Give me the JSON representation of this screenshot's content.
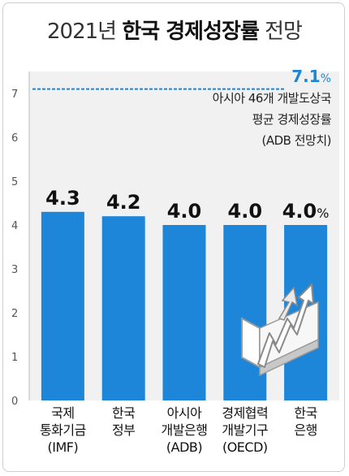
{
  "title": {
    "prefix": "2021년 ",
    "bold": "한국 경제성장률",
    "suffix": " 전망"
  },
  "reference": {
    "value_label": "7.1",
    "unit": "%",
    "note_lines": [
      "아시아 46개 개발도상국",
      "평균 경제성장률",
      "(ADB 전망치)"
    ]
  },
  "colors": {
    "bar": "#1e86d8",
    "reference_line": "#1e86d8",
    "background": "#f1f1f1"
  },
  "decor": {
    "icon": "rising-arrows-icon"
  },
  "chart_data": {
    "type": "bar",
    "title": "2021년 한국 경제성장률 전망",
    "xlabel": "",
    "ylabel": "",
    "ylim": [
      0,
      7.5
    ],
    "yticks": [
      0,
      1,
      2,
      3,
      4,
      5,
      6,
      7
    ],
    "categories": [
      [
        "국제",
        "통화기금",
        "(IMF)"
      ],
      [
        "한국",
        "정부"
      ],
      [
        "아시아",
        "개발은행",
        "(ADB)"
      ],
      [
        "경제협력",
        "개발기구",
        "(OECD)"
      ],
      [
        "한국",
        "은행"
      ]
    ],
    "values": [
      4.3,
      4.2,
      4.0,
      4.0,
      4.0
    ],
    "value_labels": [
      "4.3",
      "4.2",
      "4.0",
      "4.0",
      "4.0"
    ],
    "last_value_unit": "%",
    "reference_line": 7.1,
    "grid": false,
    "legend": "none"
  }
}
